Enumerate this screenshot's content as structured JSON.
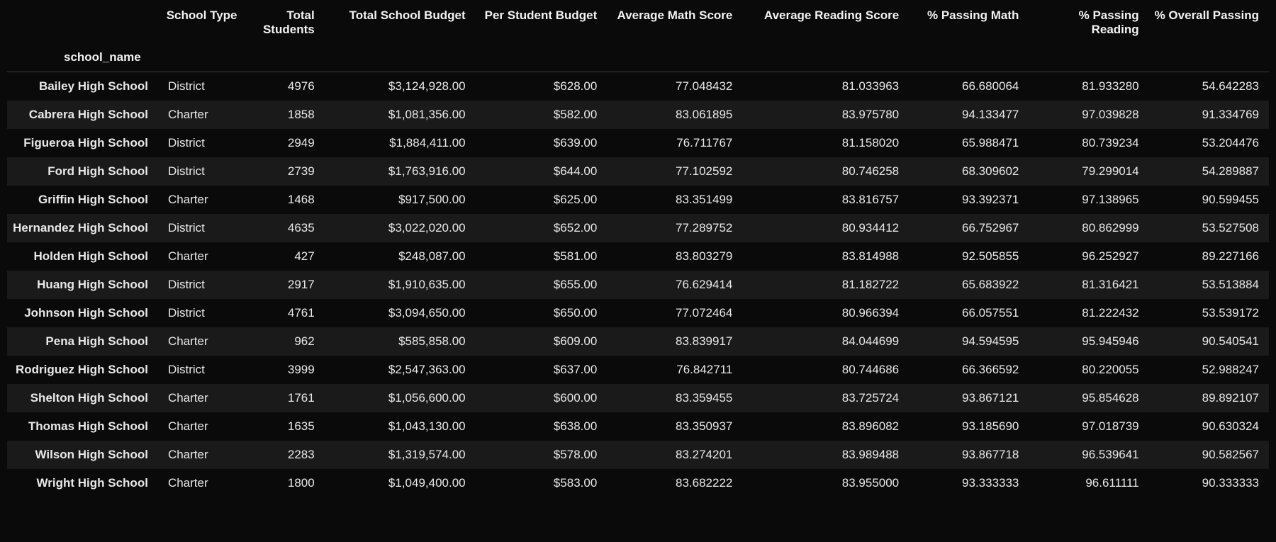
{
  "table": {
    "index_label": "school_name",
    "columns": [
      "School Type",
      "Total Students",
      "Total School Budget",
      "Per Student Budget",
      "Average Math Score",
      "Average Reading Score",
      "% Passing Math",
      "% Passing Reading",
      "% Overall Passing"
    ],
    "column_align": [
      "left",
      "right",
      "right",
      "right",
      "right",
      "right",
      "right",
      "right",
      "right"
    ],
    "rows": [
      {
        "name": "Bailey High School",
        "cells": [
          "District",
          "4976",
          "$3,124,928.00",
          "$628.00",
          "77.048432",
          "81.033963",
          "66.680064",
          "81.933280",
          "54.642283"
        ]
      },
      {
        "name": "Cabrera High School",
        "cells": [
          "Charter",
          "1858",
          "$1,081,356.00",
          "$582.00",
          "83.061895",
          "83.975780",
          "94.133477",
          "97.039828",
          "91.334769"
        ]
      },
      {
        "name": "Figueroa High School",
        "cells": [
          "District",
          "2949",
          "$1,884,411.00",
          "$639.00",
          "76.711767",
          "81.158020",
          "65.988471",
          "80.739234",
          "53.204476"
        ]
      },
      {
        "name": "Ford High School",
        "cells": [
          "District",
          "2739",
          "$1,763,916.00",
          "$644.00",
          "77.102592",
          "80.746258",
          "68.309602",
          "79.299014",
          "54.289887"
        ]
      },
      {
        "name": "Griffin High School",
        "cells": [
          "Charter",
          "1468",
          "$917,500.00",
          "$625.00",
          "83.351499",
          "83.816757",
          "93.392371",
          "97.138965",
          "90.599455"
        ]
      },
      {
        "name": "Hernandez High School",
        "cells": [
          "District",
          "4635",
          "$3,022,020.00",
          "$652.00",
          "77.289752",
          "80.934412",
          "66.752967",
          "80.862999",
          "53.527508"
        ]
      },
      {
        "name": "Holden High School",
        "cells": [
          "Charter",
          "427",
          "$248,087.00",
          "$581.00",
          "83.803279",
          "83.814988",
          "92.505855",
          "96.252927",
          "89.227166"
        ]
      },
      {
        "name": "Huang High School",
        "cells": [
          "District",
          "2917",
          "$1,910,635.00",
          "$655.00",
          "76.629414",
          "81.182722",
          "65.683922",
          "81.316421",
          "53.513884"
        ]
      },
      {
        "name": "Johnson High School",
        "cells": [
          "District",
          "4761",
          "$3,094,650.00",
          "$650.00",
          "77.072464",
          "80.966394",
          "66.057551",
          "81.222432",
          "53.539172"
        ]
      },
      {
        "name": "Pena High School",
        "cells": [
          "Charter",
          "962",
          "$585,858.00",
          "$609.00",
          "83.839917",
          "84.044699",
          "94.594595",
          "95.945946",
          "90.540541"
        ]
      },
      {
        "name": "Rodriguez High School",
        "cells": [
          "District",
          "3999",
          "$2,547,363.00",
          "$637.00",
          "76.842711",
          "80.744686",
          "66.366592",
          "80.220055",
          "52.988247"
        ]
      },
      {
        "name": "Shelton High School",
        "cells": [
          "Charter",
          "1761",
          "$1,056,600.00",
          "$600.00",
          "83.359455",
          "83.725724",
          "93.867121",
          "95.854628",
          "89.892107"
        ]
      },
      {
        "name": "Thomas High School",
        "cells": [
          "Charter",
          "1635",
          "$1,043,130.00",
          "$638.00",
          "83.350937",
          "83.896082",
          "93.185690",
          "97.018739",
          "90.630324"
        ]
      },
      {
        "name": "Wilson High School",
        "cells": [
          "Charter",
          "2283",
          "$1,319,574.00",
          "$578.00",
          "83.274201",
          "83.989488",
          "93.867718",
          "96.539641",
          "90.582567"
        ]
      },
      {
        "name": "Wright High School",
        "cells": [
          "Charter",
          "1800",
          "$1,049,400.00",
          "$583.00",
          "83.682222",
          "83.955000",
          "93.333333",
          "96.611111",
          "90.333333"
        ]
      }
    ],
    "colors": {
      "background": "#0a0a0a",
      "row_alt_background": "#1a1a1a",
      "text": "#e8e8e8",
      "header_text": "#f2f2f2",
      "divider": "#3a3a3a"
    },
    "font_size_pt": 13
  }
}
